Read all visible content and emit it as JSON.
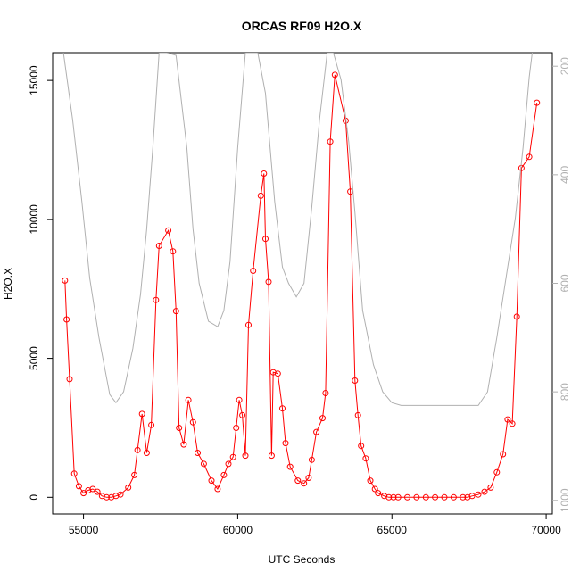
{
  "chart_data": {
    "type": "line",
    "title": "ORCAS RF09 H2O.X",
    "xlabel": "UTC Seconds",
    "ylabel": "H2O.X",
    "xlim": [
      54000,
      70200
    ],
    "ylim": [
      -600,
      16000
    ],
    "x_ticks": [
      "55000",
      "60000",
      "65000",
      "70000"
    ],
    "y_ticks": [
      "0",
      "5000",
      "10000",
      "15000"
    ],
    "right_axis": {
      "ylim": [
        1025,
        175
      ],
      "ticks": [
        "200",
        "400",
        "600",
        "800",
        "1000"
      ],
      "color": "#b0b0b0"
    },
    "series": [
      {
        "color": "#ff0000",
        "marker": "open-circle",
        "x": [
          54400,
          54450,
          54550,
          54700,
          54850,
          55000,
          55150,
          55300,
          55450,
          55600,
          55750,
          55900,
          56050,
          56200,
          56450,
          56650,
          56750,
          56900,
          57050,
          57200,
          57350,
          57450,
          57750,
          57900,
          58000,
          58100,
          58250,
          58400,
          58550,
          58700,
          58900,
          59150,
          59350,
          59550,
          59700,
          59850,
          59950,
          60050,
          60150,
          60250,
          60350,
          60500,
          60750,
          60850,
          60900,
          61000,
          61100,
          61150,
          61300,
          61450,
          61550,
          61700,
          61950,
          62150,
          62300,
          62400,
          62550,
          62750,
          62850,
          63000,
          63150,
          63500,
          63650,
          63800,
          63900,
          64000,
          64150,
          64300,
          64450,
          64550,
          64750,
          64900,
          65050,
          65200,
          65500,
          65800,
          66100,
          66400,
          66700,
          67000,
          67300,
          67450,
          67600,
          67800,
          68000,
          68200,
          68400,
          68600,
          68750,
          68900,
          69050,
          69200,
          69450,
          69700
        ],
        "y": [
          7800,
          6400,
          4250,
          850,
          400,
          150,
          250,
          300,
          200,
          50,
          0,
          0,
          50,
          100,
          350,
          800,
          1700,
          3000,
          1600,
          2600,
          7100,
          9050,
          9600,
          8850,
          6700,
          2500,
          1900,
          3500,
          2700,
          1600,
          1200,
          600,
          300,
          800,
          1200,
          1450,
          2500,
          3500,
          2950,
          1500,
          6200,
          8150,
          10850,
          11650,
          9300,
          7750,
          1500,
          4500,
          4450,
          3200,
          1950,
          1100,
          600,
          500,
          700,
          1350,
          2350,
          2850,
          3750,
          12800,
          15200,
          13550,
          11000,
          4200,
          2950,
          1850,
          1400,
          600,
          300,
          150,
          50,
          0,
          0,
          0,
          0,
          0,
          0,
          0,
          0,
          0,
          0,
          0,
          50,
          100,
          200,
          350,
          900,
          1550,
          2800,
          2650,
          6500,
          11850,
          12250,
          14200
        ]
      },
      {
        "color": "#b0b0b0",
        "marker": "none",
        "right_axis": true,
        "x": [
          54350,
          54650,
          54950,
          55200,
          55500,
          55700,
          55850,
          56050,
          56300,
          56600,
          56850,
          57050,
          57250,
          57450,
          57700,
          58000,
          58350,
          58550,
          58750,
          59050,
          59350,
          59550,
          59750,
          60000,
          60250,
          60450,
          60650,
          60900,
          61200,
          61450,
          61650,
          61900,
          62150,
          62400,
          62650,
          62900,
          63100,
          63350,
          63600,
          63800,
          64050,
          64400,
          64700,
          65000,
          65300,
          66000,
          67000,
          67800,
          68100,
          68400,
          68700,
          69000,
          69250,
          69450,
          69550
        ],
        "y": [
          175,
          300,
          450,
          590,
          700,
          760,
          805,
          820,
          800,
          720,
          620,
          500,
          350,
          175,
          175,
          180,
          350,
          500,
          600,
          670,
          680,
          650,
          560,
          350,
          175,
          175,
          175,
          250,
          450,
          570,
          600,
          625,
          600,
          460,
          300,
          175,
          175,
          225,
          340,
          470,
          650,
          750,
          800,
          820,
          825,
          825,
          825,
          825,
          800,
          700,
          590,
          480,
          350,
          220,
          175
        ]
      }
    ]
  }
}
